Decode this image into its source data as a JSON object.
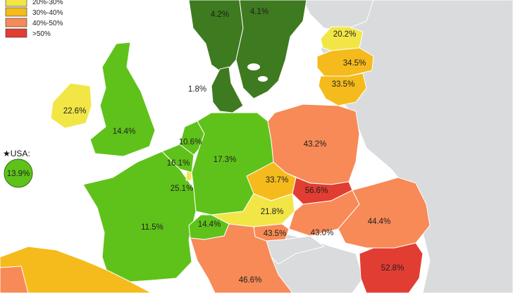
{
  "legend": [
    {
      "label": "20%-30%",
      "color": "#f1e646"
    },
    {
      "label": "30%-40%",
      "color": "#f5bb1c"
    },
    {
      "label": "40%-50%",
      "color": "#f78a56"
    },
    {
      "label": ">50%",
      "color": "#e23d32"
    }
  ],
  "usa": {
    "title": "USA:",
    "value": "13.9%",
    "color": "#5fc21a"
  },
  "values": {
    "norway": "4.2%",
    "sweden": "4.1%",
    "estonia": "20.2%",
    "latvia": "34.5%",
    "lithuania": "33.5%",
    "denmark": "1.8%",
    "ireland": "22.6%",
    "uk": "14.4%",
    "netherlands": "10.6%",
    "belgium": "16.1%",
    "luxembourg": "25.1%",
    "germany": "17.3%",
    "poland": "43.2%",
    "czechia": "33.7%",
    "slovakia": "56.6%",
    "austria": "21.8%",
    "hungary": "43.0%",
    "romania": "44.4%",
    "france": "11.5%",
    "switzerland": "14.4%",
    "slovenia": "43.5%",
    "italy": "46.6%",
    "bulgaria": "52.8%"
  }
}
